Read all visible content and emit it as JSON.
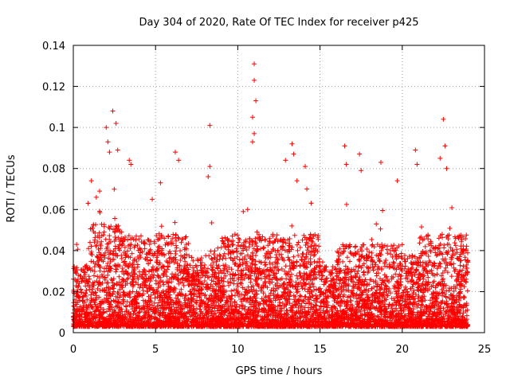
{
  "chart_data": {
    "type": "scatter",
    "title": "Day 304 of 2020, Rate Of TEC Index for receiver p425",
    "xlabel": "GPS time / hours",
    "ylabel": "ROTI / TECUs",
    "xlim": [
      0,
      25
    ],
    "ylim": [
      0,
      0.14
    ],
    "xticks": [
      0,
      5,
      10,
      15,
      20,
      25
    ],
    "yticks": [
      0,
      0.02,
      0.04,
      0.06,
      0.08,
      0.1,
      0.12,
      0.14
    ],
    "xtick_labels": [
      "0",
      "5",
      "10",
      "15",
      "20",
      "25"
    ],
    "ytick_labels": [
      "0",
      "0.02",
      "0.04",
      "0.06",
      "0.08",
      "0.1",
      "0.12",
      "0.14"
    ],
    "grid": true,
    "marker": "+",
    "marker_color": "#ff0000",
    "x_data_range": [
      0,
      24
    ],
    "series": [
      {
        "name": "ROTI",
        "notable_points": [
          {
            "x": 0.2,
            "y": 0.043
          },
          {
            "x": 0.9,
            "y": 0.063
          },
          {
            "x": 1.1,
            "y": 0.074
          },
          {
            "x": 1.4,
            "y": 0.066
          },
          {
            "x": 1.6,
            "y": 0.069
          },
          {
            "x": 2.0,
            "y": 0.1
          },
          {
            "x": 2.1,
            "y": 0.093
          },
          {
            "x": 2.2,
            "y": 0.088
          },
          {
            "x": 2.4,
            "y": 0.108
          },
          {
            "x": 2.6,
            "y": 0.102
          },
          {
            "x": 2.7,
            "y": 0.089
          },
          {
            "x": 3.4,
            "y": 0.084
          },
          {
            "x": 3.5,
            "y": 0.082
          },
          {
            "x": 4.8,
            "y": 0.065
          },
          {
            "x": 5.3,
            "y": 0.073
          },
          {
            "x": 6.2,
            "y": 0.088
          },
          {
            "x": 6.4,
            "y": 0.084
          },
          {
            "x": 8.3,
            "y": 0.101
          },
          {
            "x": 8.3,
            "y": 0.081
          },
          {
            "x": 8.2,
            "y": 0.076
          },
          {
            "x": 10.6,
            "y": 0.06
          },
          {
            "x": 11.0,
            "y": 0.131
          },
          {
            "x": 11.0,
            "y": 0.123
          },
          {
            "x": 11.1,
            "y": 0.113
          },
          {
            "x": 10.9,
            "y": 0.105
          },
          {
            "x": 11.0,
            "y": 0.097
          },
          {
            "x": 10.9,
            "y": 0.093
          },
          {
            "x": 12.9,
            "y": 0.084
          },
          {
            "x": 13.3,
            "y": 0.092
          },
          {
            "x": 13.4,
            "y": 0.087
          },
          {
            "x": 13.6,
            "y": 0.074
          },
          {
            "x": 14.1,
            "y": 0.081
          },
          {
            "x": 14.2,
            "y": 0.07
          },
          {
            "x": 16.5,
            "y": 0.091
          },
          {
            "x": 16.6,
            "y": 0.082
          },
          {
            "x": 17.4,
            "y": 0.087
          },
          {
            "x": 17.5,
            "y": 0.079
          },
          {
            "x": 18.7,
            "y": 0.083
          },
          {
            "x": 19.7,
            "y": 0.074
          },
          {
            "x": 20.8,
            "y": 0.089
          },
          {
            "x": 20.9,
            "y": 0.082
          },
          {
            "x": 22.3,
            "y": 0.085
          },
          {
            "x": 22.5,
            "y": 0.104
          },
          {
            "x": 22.6,
            "y": 0.091
          },
          {
            "x": 22.7,
            "y": 0.08
          }
        ],
        "bulk_density": [
          {
            "start": 0,
            "end": 1,
            "typical_max": 0.03
          },
          {
            "start": 1,
            "end": 3,
            "typical_max": 0.05
          },
          {
            "start": 3,
            "end": 7,
            "typical_max": 0.045
          },
          {
            "start": 7,
            "end": 9,
            "typical_max": 0.035
          },
          {
            "start": 9,
            "end": 12,
            "typical_max": 0.045
          },
          {
            "start": 12,
            "end": 15,
            "typical_max": 0.045
          },
          {
            "start": 15,
            "end": 16,
            "typical_max": 0.03
          },
          {
            "start": 16,
            "end": 20,
            "typical_max": 0.04
          },
          {
            "start": 20,
            "end": 21,
            "typical_max": 0.035
          },
          {
            "start": 21,
            "end": 24,
            "typical_max": 0.045
          }
        ]
      }
    ]
  }
}
